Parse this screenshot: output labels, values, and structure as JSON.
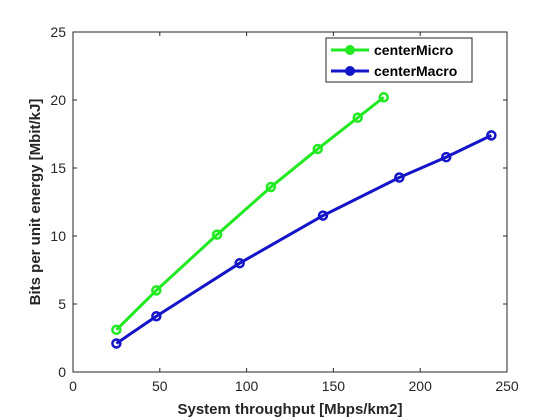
{
  "chart_data": {
    "type": "line",
    "title": "",
    "xlabel": "System throughput [Mbps/km2]",
    "ylabel": "Bits per unit energy [Mbit/kJ]",
    "xlim": [
      0,
      250
    ],
    "ylim": [
      0,
      25
    ],
    "xticks": [
      "0",
      "50",
      "100",
      "150",
      "200",
      "250"
    ],
    "yticks": [
      "0",
      "5",
      "10",
      "15",
      "20",
      "25"
    ],
    "grid": false,
    "legend_position": "top-right",
    "series": [
      {
        "name": "centerMicro",
        "color": "#22e822",
        "marker": "circle",
        "x": [
          25,
          48,
          83,
          114,
          141,
          164,
          179
        ],
        "y": [
          3.1,
          6.0,
          10.1,
          13.6,
          16.4,
          18.7,
          20.2
        ]
      },
      {
        "name": "centerMacro",
        "color": "#1414c8",
        "marker": "circle",
        "x": [
          25,
          48,
          96,
          144,
          188,
          215,
          241
        ],
        "y": [
          2.1,
          4.1,
          8.0,
          11.5,
          14.3,
          15.8,
          17.4
        ]
      }
    ]
  }
}
